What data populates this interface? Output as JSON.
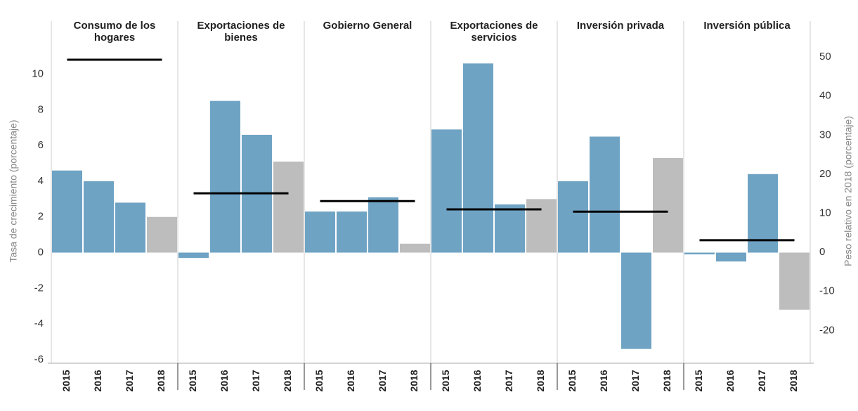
{
  "chart_data": {
    "type": "bar",
    "y_label": "Tasa de crecimiento (porcentaje)",
    "y2_label": "Peso relativo en 2018 (porcentaje)",
    "categories": [
      "2015",
      "2016",
      "2017",
      "2018"
    ],
    "bar_colors": [
      "#6fa3c4",
      "#6fa3c4",
      "#6fa3c4",
      "#bdbdbd"
    ],
    "line_color": "#000000",
    "ylim": [
      -6.2,
      11.4
    ],
    "yticks": [
      -6,
      -4,
      -2,
      0,
      2,
      4,
      6,
      8,
      10
    ],
    "y2lim": [
      -28.4,
      52
    ],
    "y2ticks": [
      -20,
      -10,
      0,
      10,
      20,
      30,
      40,
      50
    ],
    "panels": [
      {
        "title": "Consumo de los hogares",
        "values": [
          4.6,
          4.0,
          2.8,
          2.0
        ],
        "weight": 49.3
      },
      {
        "title": "Exportaciones de bienes",
        "values": [
          -0.3,
          8.5,
          6.6,
          5.1
        ],
        "weight": 15.1
      },
      {
        "title": "Gobierno General",
        "values": [
          2.3,
          2.3,
          3.1,
          0.5
        ],
        "weight": 13.1
      },
      {
        "title": "Exportaciones de servicios",
        "values": [
          6.9,
          10.6,
          2.7,
          3.0
        ],
        "weight": 11.0
      },
      {
        "title": "Inversión privada",
        "values": [
          4.0,
          6.5,
          -5.4,
          5.3
        ],
        "weight": 10.4
      },
      {
        "title": "Inversión pública",
        "values": [
          -0.1,
          -0.5,
          4.4,
          -3.2
        ],
        "weight": 3.1
      }
    ]
  }
}
